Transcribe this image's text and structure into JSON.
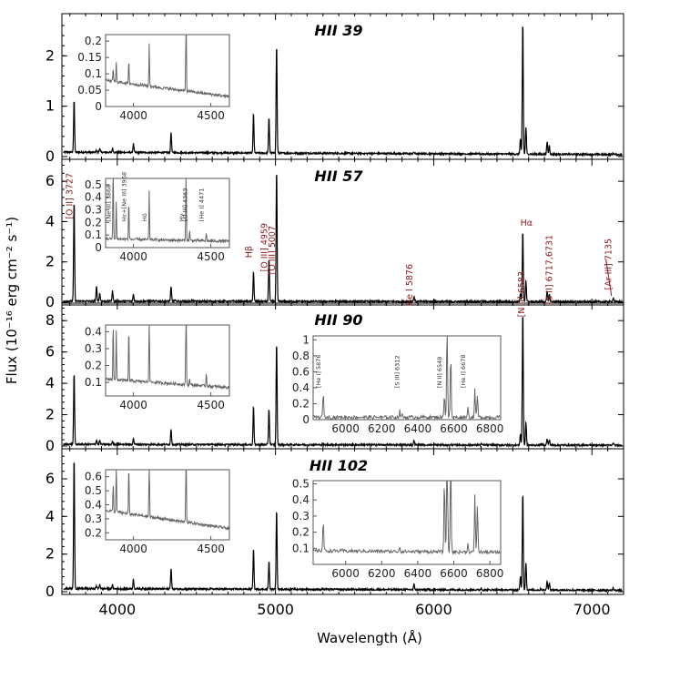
{
  "chart_data": {
    "type": "line",
    "xlabel": "Wavelength (Å)",
    "ylabel": "Flux (10⁻¹⁶ erg cm⁻² s⁻¹)",
    "xlim": [
      3650,
      7200
    ],
    "xticks": [
      4000,
      5000,
      6000,
      7000
    ],
    "continuum_features": [
      [
        3650,
        0
      ],
      [
        3700,
        0
      ],
      [
        3720,
        1
      ],
      [
        3760,
        0
      ],
      [
        3835,
        0.05
      ],
      [
        3870,
        0.12
      ],
      [
        3889,
        0.15
      ],
      [
        3970,
        0.16
      ],
      [
        4102,
        0.3
      ],
      [
        4340,
        0.45
      ],
      [
        4363,
        0.04
      ],
      [
        4471,
        0.02
      ],
      [
        4861,
        1
      ],
      [
        4959,
        0.9
      ],
      [
        5007,
        2.7
      ],
      [
        5876,
        0.1
      ],
      [
        6300,
        0.03
      ],
      [
        6548,
        0.7
      ],
      [
        6563,
        3.2
      ],
      [
        6583,
        2.1
      ],
      [
        6678,
        0.05
      ],
      [
        6717,
        0.4
      ],
      [
        6731,
        0.3
      ],
      [
        7065,
        0.03
      ],
      [
        7135,
        0.1
      ]
    ],
    "panels": [
      {
        "name": "HII 39",
        "ylim": [
          0,
          2.8
        ],
        "yticks": [
          0,
          1,
          2
        ],
        "continuum": 0.08,
        "lines": [
          [
            3727,
            1.05
          ],
          [
            3869,
            0.04
          ],
          [
            3889,
            0.08
          ],
          [
            3970,
            0.08
          ],
          [
            4102,
            0.17
          ],
          [
            4340,
            0.4
          ],
          [
            4861,
            0.79
          ],
          [
            4959,
            0.7
          ],
          [
            5007,
            2.17
          ],
          [
            5876,
            0.03
          ],
          [
            6548,
            0.3
          ],
          [
            6563,
            2.65
          ],
          [
            6583,
            0.55
          ],
          [
            6717,
            0.25
          ],
          [
            6731,
            0.18
          ],
          [
            7135,
            0.03
          ]
        ]
      },
      {
        "name": "HII 57",
        "ylim": [
          0,
          7
        ],
        "yticks": [
          0,
          2,
          4,
          6
        ],
        "continuum": 0.05,
        "lines": [
          [
            3727,
            5.0
          ],
          [
            3869,
            0.72
          ],
          [
            3889,
            0.4
          ],
          [
            3970,
            0.5
          ],
          [
            4102,
            0.35
          ],
          [
            4340,
            0.7
          ],
          [
            4363,
            0.05
          ],
          [
            4471,
            0.05
          ],
          [
            4861,
            1.5
          ],
          [
            4959,
            2.1
          ],
          [
            5007,
            6.6
          ],
          [
            5876,
            0.25
          ],
          [
            6300,
            0.05
          ],
          [
            6548,
            0.4
          ],
          [
            6563,
            3.5
          ],
          [
            6583,
            1.1
          ],
          [
            6717,
            0.5
          ],
          [
            6731,
            0.35
          ],
          [
            7135,
            0.2
          ]
        ]
      },
      {
        "name": "HII 90",
        "ylim": [
          0,
          9
        ],
        "yticks": [
          0,
          2,
          4,
          6,
          8
        ],
        "continuum": 0.1,
        "lines": [
          [
            3727,
            4.6
          ],
          [
            3869,
            0.3
          ],
          [
            3889,
            0.25
          ],
          [
            3970,
            0.2
          ],
          [
            4102,
            0.4
          ],
          [
            4340,
            1.0
          ],
          [
            4861,
            2.5
          ],
          [
            4959,
            2.3
          ],
          [
            5007,
            6.6
          ],
          [
            5876,
            0.3
          ],
          [
            6300,
            0.08
          ],
          [
            6548,
            0.7
          ],
          [
            6563,
            8.6
          ],
          [
            6583,
            1.5
          ],
          [
            6678,
            0.1
          ],
          [
            6717,
            0.4
          ],
          [
            6731,
            0.35
          ],
          [
            7135,
            0.15
          ]
        ]
      },
      {
        "name": "HII 102",
        "ylim": [
          0,
          7.5
        ],
        "yticks": [
          0,
          2,
          4,
          6
        ],
        "continuum": 0.15,
        "lines": [
          [
            3727,
            7.0
          ],
          [
            3869,
            0.15
          ],
          [
            3889,
            0.25
          ],
          [
            3970,
            0.2
          ],
          [
            4102,
            0.5
          ],
          [
            4340,
            1.1
          ],
          [
            4861,
            2.2
          ],
          [
            4959,
            1.5
          ],
          [
            5007,
            4.3
          ],
          [
            5876,
            0.3
          ],
          [
            6300,
            0.08
          ],
          [
            6548,
            0.7
          ],
          [
            6563,
            5.2
          ],
          [
            6583,
            1.5
          ],
          [
            6678,
            0.08
          ],
          [
            6717,
            0.5
          ],
          [
            6731,
            0.4
          ],
          [
            7135,
            0.12
          ]
        ]
      }
    ],
    "line_labels": [
      {
        "text": "[O II] 3727",
        "wavelength": 3727
      },
      {
        "text": "Hβ",
        "wavelength": 4861
      },
      {
        "text": "[O III] 4959",
        "wavelength": 4959
      },
      {
        "text": "[O III] 5007",
        "wavelength": 5007
      },
      {
        "text": "He I 5876",
        "wavelength": 5876
      },
      {
        "text": "Hα",
        "wavelength": 6563
      },
      {
        "text": "[N II] 6583",
        "wavelength": 6583
      },
      {
        "text": "[S II] 6717,6731",
        "wavelength": 6724
      },
      {
        "text": "[Ar III] 7135",
        "wavelength": 7135
      }
    ],
    "insets": [
      {
        "panel": 0,
        "range": [
          3820,
          4620
        ],
        "ylim": [
          0,
          0.22
        ],
        "yticks": [
          0,
          0.05,
          0.1,
          0.15,
          0.2
        ],
        "ytick_labels": [
          "0",
          "0.05",
          "0.1",
          "0.15",
          "0.2"
        ],
        "xticks": [
          4000,
          4500
        ],
        "continuum_start": 0.08,
        "continuum_end": 0.03,
        "lines": [
          [
            3869,
            0.04
          ],
          [
            3889,
            0.06
          ],
          [
            3970,
            0.07
          ],
          [
            4102,
            0.13
          ],
          [
            4340,
            0.3
          ]
        ],
        "labels": []
      },
      {
        "panel": 1,
        "range": [
          3820,
          4620
        ],
        "ylim": [
          0,
          0.55
        ],
        "yticks": [
          0,
          0.1,
          0.2,
          0.3,
          0.4,
          0.5
        ],
        "ytick_labels": [
          "0",
          "0.1",
          "0.2",
          "0.3",
          "0.4",
          "0.5"
        ],
        "xticks": [
          4000,
          4500
        ],
        "continuum_start": 0.07,
        "continuum_end": 0.05,
        "lines": [
          [
            3869,
            0.6
          ],
          [
            3889,
            0.3
          ],
          [
            3970,
            0.32
          ],
          [
            4102,
            0.38
          ],
          [
            4340,
            0.6
          ],
          [
            4363,
            0.08
          ],
          [
            4471,
            0.06
          ]
        ],
        "labels": [
          {
            "text": "[Ne III] 3868",
            "wavelength": 3869
          },
          {
            "text": "Hε+[Ne III] 3968",
            "wavelength": 3970
          },
          {
            "text": "Hδ",
            "wavelength": 4102
          },
          {
            "text": "Hγ",
            "wavelength": 4340
          },
          {
            "text": "[O III] 4363",
            "wavelength": 4363
          },
          {
            "text": "[He I] 4471",
            "wavelength": 4471
          }
        ]
      },
      {
        "panel": 2,
        "range": [
          3820,
          4620
        ],
        "ylim": [
          0.02,
          0.44
        ],
        "yticks": [
          0.1,
          0.2,
          0.3,
          0.4
        ],
        "ytick_labels": [
          "0.1",
          "0.2",
          "0.3",
          "0.4"
        ],
        "xticks": [
          4000,
          4500
        ],
        "continuum_start": 0.12,
        "continuum_end": 0.07,
        "lines": [
          [
            3869,
            0.34
          ],
          [
            3889,
            0.3
          ],
          [
            3970,
            0.32
          ],
          [
            4102,
            0.48
          ],
          [
            4340,
            0.7
          ],
          [
            4363,
            0.04
          ],
          [
            4471,
            0.08
          ]
        ],
        "labels": []
      },
      {
        "panel": 3,
        "range": [
          3820,
          4620
        ],
        "ylim": [
          0.15,
          0.65
        ],
        "yticks": [
          0.2,
          0.3,
          0.4,
          0.5,
          0.6
        ],
        "ytick_labels": [
          "0.2",
          "0.3",
          "0.4",
          "0.5",
          "0.6"
        ],
        "xticks": [
          4000,
          4500
        ],
        "continuum_start": 0.36,
        "continuum_end": 0.23,
        "lines": [
          [
            3869,
            0.2
          ],
          [
            3889,
            0.4
          ],
          [
            3970,
            0.35
          ],
          [
            4102,
            0.5
          ],
          [
            4340,
            0.7
          ]
        ],
        "labels": []
      },
      {
        "panel": 2,
        "range": [
          5820,
          6860
        ],
        "ylim": [
          0,
          1.05
        ],
        "yticks": [
          0,
          0.2,
          0.4,
          0.6,
          0.8,
          1
        ],
        "ytick_labels": [
          "0",
          "0.2",
          "0.4",
          "0.6",
          "0.8",
          "1"
        ],
        "xticks": [
          6000,
          6200,
          6400,
          6600,
          6800
        ],
        "continuum_start": 0.03,
        "continuum_end": 0.03,
        "lines": [
          [
            5876,
            0.3
          ],
          [
            6300,
            0.08
          ],
          [
            6312,
            0.04
          ],
          [
            6548,
            0.3
          ],
          [
            6563,
            1.3
          ],
          [
            6583,
            0.8
          ],
          [
            6678,
            0.12
          ],
          [
            6717,
            0.35
          ],
          [
            6731,
            0.28
          ]
        ],
        "labels": [
          {
            "text": "[He I] 5876",
            "wavelength": 5876
          },
          {
            "text": "[S III] 6312",
            "wavelength": 6312
          },
          {
            "text": "[N II] 6548",
            "wavelength": 6548
          },
          {
            "text": "[He I] 6678",
            "wavelength": 6678
          }
        ]
      },
      {
        "panel": 3,
        "range": [
          5820,
          6860
        ],
        "ylim": [
          0,
          0.52
        ],
        "yticks": [
          0.1,
          0.2,
          0.3,
          0.4,
          0.5
        ],
        "ytick_labels": [
          "0.1",
          "0.2",
          "0.3",
          "0.4",
          "0.5"
        ],
        "xticks": [
          6000,
          6200,
          6400,
          6600,
          6800
        ],
        "continuum_start": 0.085,
        "continuum_end": 0.075,
        "lines": [
          [
            5876,
            0.19
          ],
          [
            6300,
            0.03
          ],
          [
            6548,
            0.45
          ],
          [
            6563,
            1.0
          ],
          [
            6583,
            0.6
          ],
          [
            6678,
            0.05
          ],
          [
            6717,
            0.36
          ],
          [
            6731,
            0.3
          ]
        ],
        "labels": []
      }
    ]
  }
}
